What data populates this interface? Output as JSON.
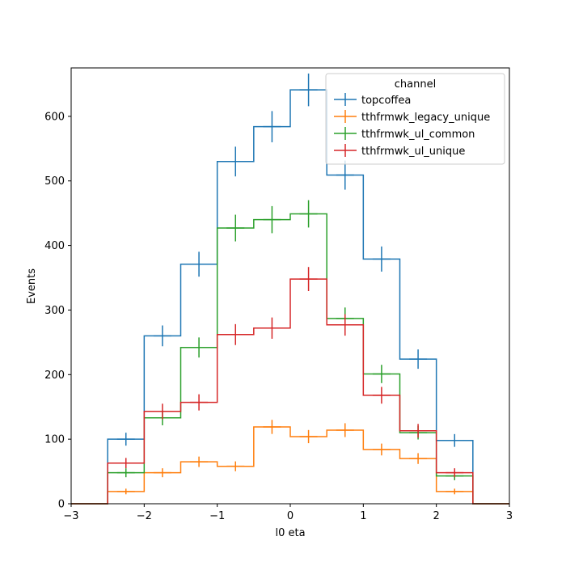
{
  "chart_data": {
    "type": "line",
    "drawstyle": "step-histogram",
    "xlabel": "l0 eta",
    "ylabel": "Events",
    "xlim": [
      -3,
      3
    ],
    "ylim": [
      0,
      675
    ],
    "xticks": [
      -3,
      -2,
      -1,
      0,
      1,
      2,
      3
    ],
    "xtick_labels": [
      "−3",
      "−2",
      "−1",
      "0",
      "1",
      "2",
      "3"
    ],
    "yticks": [
      0,
      100,
      200,
      300,
      400,
      500,
      600
    ],
    "yticks_labels": [
      "0",
      "100",
      "200",
      "300",
      "400",
      "500",
      "600"
    ],
    "bin_edges": [
      -3,
      -2.5,
      -2,
      -1.5,
      -1,
      -0.5,
      0,
      0.5,
      1,
      1.5,
      2,
      2.5,
      3
    ],
    "legend": {
      "title": "channel",
      "position": "top-right"
    },
    "series": [
      {
        "name": "topcoffea",
        "color": "#1f77b4",
        "values": [
          0,
          100,
          260,
          371,
          530,
          584,
          641,
          509,
          379,
          224,
          98,
          0
        ]
      },
      {
        "name": "tthfrmwk_legacy_unique",
        "color": "#ff7f0e",
        "values": [
          0,
          19,
          48,
          65,
          58,
          119,
          104,
          114,
          84,
          70,
          19,
          0
        ]
      },
      {
        "name": "tthfrmwk_ul_common",
        "color": "#2ca02c",
        "values": [
          0,
          48,
          133,
          242,
          427,
          440,
          449,
          287,
          201,
          110,
          43,
          0
        ]
      },
      {
        "name": "tthfrmwk_ul_unique",
        "color": "#d62728",
        "values": [
          0,
          63,
          143,
          157,
          262,
          272,
          348,
          277,
          168,
          113,
          48,
          0
        ]
      }
    ]
  }
}
